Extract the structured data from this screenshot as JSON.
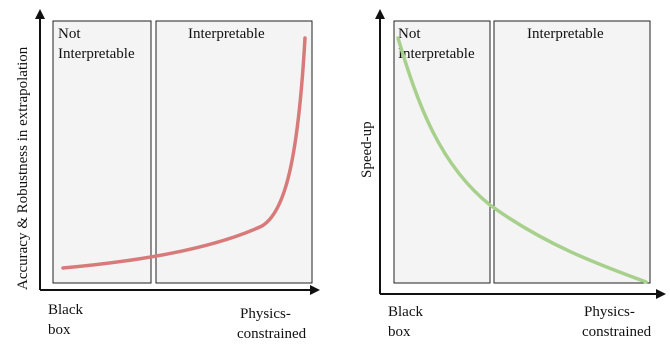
{
  "left_panel": {
    "y_axis_label": "Accuracy & Robustness in extrapolation",
    "x_axis_start_lines": [
      "Black",
      "box"
    ],
    "x_axis_end_lines": [
      "Physics-",
      "constrained"
    ],
    "region_not_interpretable_lines": [
      "Not",
      "Interpretable"
    ],
    "region_interpretable": "Interpretable",
    "curve_color": "#d97a7a"
  },
  "right_panel": {
    "y_axis_label": "Speed-up",
    "x_axis_start_lines": [
      "Black",
      "box"
    ],
    "x_axis_end_lines": [
      "Physics-",
      "constrained"
    ],
    "region_not_interpretable_lines": [
      "Not",
      "Interpretable"
    ],
    "region_interpretable": "Interpretable",
    "curve_color": "#a8d08d"
  },
  "colors": {
    "region_fill": "#f4f4f4",
    "region_stroke": "#222222",
    "axis": "#111111"
  }
}
